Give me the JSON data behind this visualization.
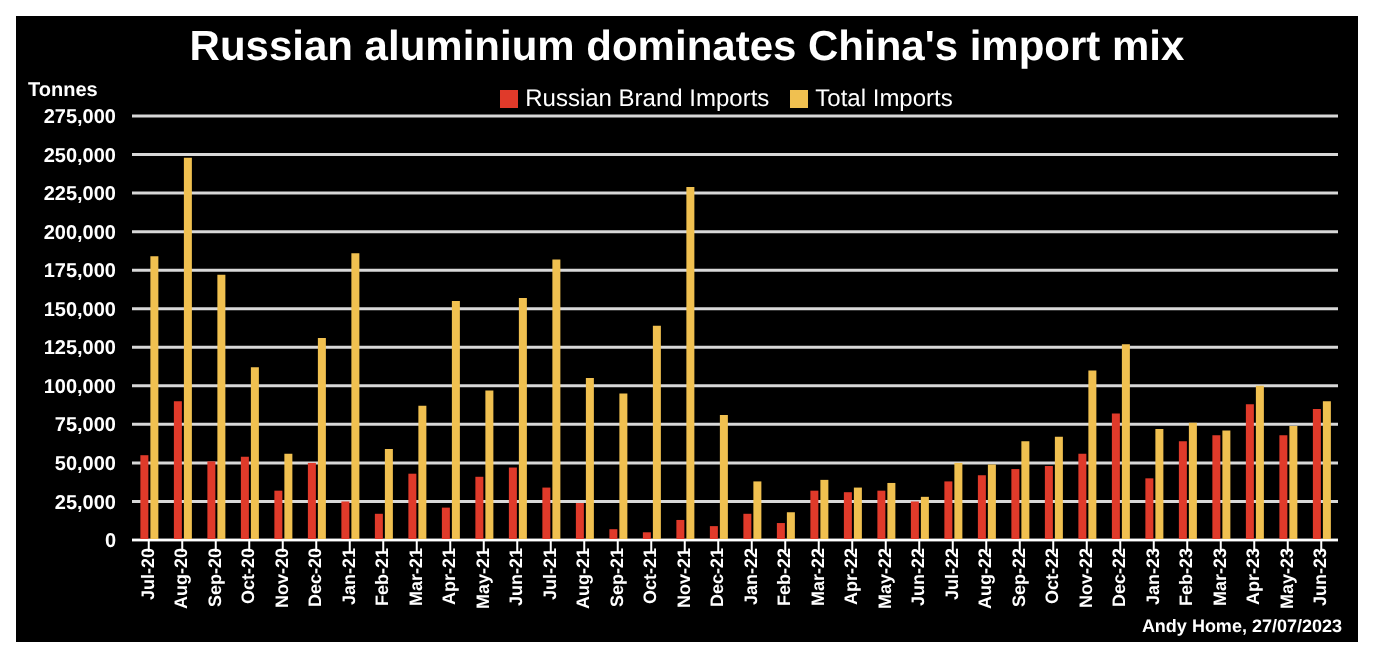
{
  "chart_data": {
    "type": "bar",
    "title": "Russian aluminium dominates China's import mix",
    "ylabel": "Tonnes",
    "annotations": [
      "Andy Home, 27/07/2023"
    ],
    "categories": [
      "Jul-20",
      "Aug-20",
      "Sep-20",
      "Oct-20",
      "Nov-20",
      "Dec-20",
      "Jan-21",
      "Feb-21",
      "Mar-21",
      "Apr-21",
      "May-21",
      "Jun-21",
      "Jul-21",
      "Aug-21",
      "Sep-21",
      "Oct-21",
      "Nov-21",
      "Dec-21",
      "Jan-22",
      "Feb-22",
      "Mar-22",
      "Apr-22",
      "May-22",
      "Jun-22",
      "Jul-22",
      "Aug-22",
      "Sep-22",
      "Oct-22",
      "Nov-22",
      "Dec-22",
      "Jan-23",
      "Feb-23",
      "Mar-23",
      "Apr-23",
      "May-23",
      "Jun-23"
    ],
    "series": [
      {
        "name": "Russian Brand Imports",
        "color": "#e03a2a",
        "values": [
          55000,
          90000,
          51000,
          54000,
          32000,
          50000,
          25000,
          17000,
          43000,
          21000,
          41000,
          47000,
          34000,
          24000,
          7000,
          5000,
          13000,
          9000,
          17000,
          11000,
          32000,
          31000,
          32000,
          25000,
          38000,
          42000,
          46000,
          48000,
          56000,
          82000,
          40000,
          64000,
          68000,
          88000,
          68000,
          85000
        ]
      },
      {
        "name": "Total Imports",
        "color": "#f0c050",
        "values": [
          184000,
          248000,
          172000,
          112000,
          56000,
          131000,
          186000,
          59000,
          87000,
          155000,
          97000,
          157000,
          182000,
          105000,
          95000,
          139000,
          229000,
          81000,
          38000,
          18000,
          39000,
          34000,
          37000,
          28000,
          50000,
          49000,
          64000,
          67000,
          110000,
          127000,
          72000,
          76000,
          71000,
          100000,
          74000,
          90000
        ]
      }
    ],
    "ylim": [
      0,
      275000
    ],
    "yticks": [
      0,
      {
        "value": 25000,
        "label": "25,000"
      },
      {
        "value": 50000,
        "label": "50,000"
      },
      {
        "value": 75000,
        "label": "75,000"
      },
      {
        "value": 100000,
        "label": "100,000"
      },
      {
        "value": 125000,
        "label": "125,000"
      },
      {
        "value": 150000,
        "label": "150,000"
      },
      {
        "value": 175000,
        "label": "175,000"
      },
      {
        "value": 200000,
        "label": "200,000"
      },
      {
        "value": 225000,
        "label": "225,000"
      },
      {
        "value": 250000,
        "label": "250,000"
      },
      {
        "value": 275000,
        "label": "275,000"
      }
    ],
    "grid": "y",
    "legend": "top"
  }
}
